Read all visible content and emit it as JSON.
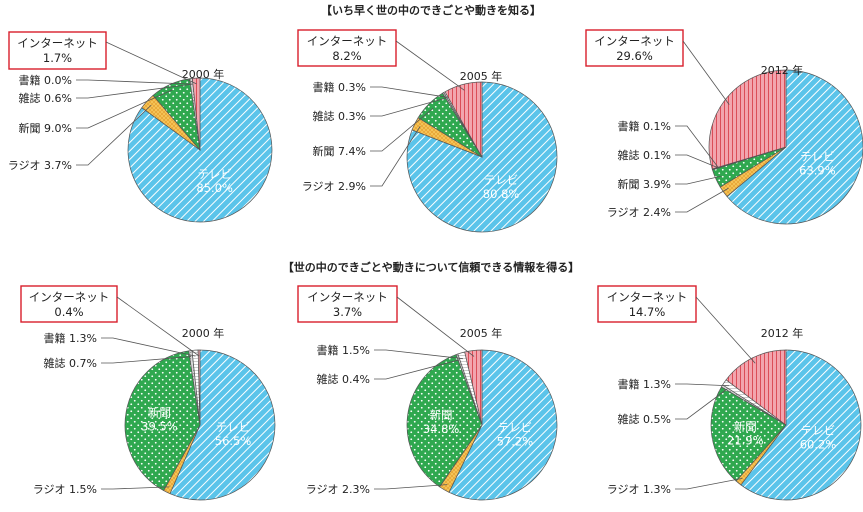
{
  "colors": {
    "tv": "#5bc4ea",
    "newspaper": "#2fa84f",
    "radio": "#f5c65a",
    "internet": "#f2a5ae",
    "magazine": "#d7d7d7",
    "book": "#ffffff",
    "label_box_border": "#d81e2c",
    "leader_line": "#555555"
  },
  "sections": [
    {
      "title": "【いち早く世の中のできごとや動きを知る】"
    },
    {
      "title": "【世の中のできごとや動きについて信頼できる情報を得る】"
    }
  ],
  "chart_data": [
    {
      "type": "pie",
      "section": 0,
      "year_label": "2000 年",
      "slices": [
        {
          "category": "テレビ",
          "value": 85.0,
          "label": "テレビ",
          "value_label": "85.0%"
        },
        {
          "category": "ラジオ",
          "value": 3.7,
          "label": "ラジオ",
          "value_label": "3.7%"
        },
        {
          "category": "新聞",
          "value": 9.0,
          "label": "新聞",
          "value_label": "9.0%"
        },
        {
          "category": "雑誌",
          "value": 0.6,
          "label": "雑誌",
          "value_label": "0.6%"
        },
        {
          "category": "書籍",
          "value": 0.0,
          "label": "書籍",
          "value_label": "0.0%"
        },
        {
          "category": "インターネット",
          "value": 1.7,
          "label": "インターネット",
          "value_label": "1.7%"
        }
      ]
    },
    {
      "type": "pie",
      "section": 0,
      "year_label": "2005 年",
      "slices": [
        {
          "category": "テレビ",
          "value": 80.8,
          "label": "テレビ",
          "value_label": "80.8%"
        },
        {
          "category": "ラジオ",
          "value": 2.9,
          "label": "ラジオ",
          "value_label": "2.9%"
        },
        {
          "category": "新聞",
          "value": 7.4,
          "label": "新聞",
          "value_label": "7.4%"
        },
        {
          "category": "雑誌",
          "value": 0.3,
          "label": "雑誌",
          "value_label": "0.3%"
        },
        {
          "category": "書籍",
          "value": 0.3,
          "label": "書籍",
          "value_label": "0.3%"
        },
        {
          "category": "インターネット",
          "value": 8.2,
          "label": "インターネット",
          "value_label": "8.2%"
        }
      ]
    },
    {
      "type": "pie",
      "section": 0,
      "year_label": "2012 年",
      "slices": [
        {
          "category": "テレビ",
          "value": 63.9,
          "label": "テレビ",
          "value_label": "63.9%"
        },
        {
          "category": "ラジオ",
          "value": 2.4,
          "label": "ラジオ",
          "value_label": "2.4%"
        },
        {
          "category": "新聞",
          "value": 3.9,
          "label": "新聞",
          "value_label": "3.9%"
        },
        {
          "category": "雑誌",
          "value": 0.1,
          "label": "雑誌",
          "value_label": "0.1%"
        },
        {
          "category": "書籍",
          "value": 0.1,
          "label": "書籍",
          "value_label": "0.1%"
        },
        {
          "category": "インターネット",
          "value": 29.6,
          "label": "インターネット",
          "value_label": "29.6%"
        }
      ]
    },
    {
      "type": "pie",
      "section": 1,
      "year_label": "2000 年",
      "slices": [
        {
          "category": "テレビ",
          "value": 56.5,
          "label": "テレビ",
          "value_label": "56.5%"
        },
        {
          "category": "ラジオ",
          "value": 1.5,
          "label": "ラジオ",
          "value_label": "1.5%"
        },
        {
          "category": "新聞",
          "value": 39.5,
          "label": "新聞",
          "value_label": "39.5%"
        },
        {
          "category": "雑誌",
          "value": 0.7,
          "label": "雑誌",
          "value_label": "0.7%"
        },
        {
          "category": "書籍",
          "value": 1.3,
          "label": "書籍",
          "value_label": "1.3%"
        },
        {
          "category": "インターネット",
          "value": 0.4,
          "label": "インターネット",
          "value_label": "0.4%"
        }
      ]
    },
    {
      "type": "pie",
      "section": 1,
      "year_label": "2005 年",
      "slices": [
        {
          "category": "テレビ",
          "value": 57.2,
          "label": "テレビ",
          "value_label": "57.2%"
        },
        {
          "category": "ラジオ",
          "value": 2.3,
          "label": "ラジオ",
          "value_label": "2.3%"
        },
        {
          "category": "新聞",
          "value": 34.8,
          "label": "新聞",
          "value_label": "34.8%"
        },
        {
          "category": "雑誌",
          "value": 0.4,
          "label": "雑誌",
          "value_label": "0.4%"
        },
        {
          "category": "書籍",
          "value": 1.5,
          "label": "書籍",
          "value_label": "1.5%"
        },
        {
          "category": "インターネット",
          "value": 3.7,
          "label": "インターネット",
          "value_label": "3.7%"
        }
      ]
    },
    {
      "type": "pie",
      "section": 1,
      "year_label": "2012 年",
      "slices": [
        {
          "category": "テレビ",
          "value": 60.2,
          "label": "テレビ",
          "value_label": "60.2%"
        },
        {
          "category": "ラジオ",
          "value": 1.3,
          "label": "ラジオ",
          "value_label": "1.3%"
        },
        {
          "category": "新聞",
          "value": 21.9,
          "label": "新聞",
          "value_label": "21.9%"
        },
        {
          "category": "雑誌",
          "value": 0.5,
          "label": "雑誌",
          "value_label": "0.5%"
        },
        {
          "category": "書籍",
          "value": 1.3,
          "label": "書籍",
          "value_label": "1.3%"
        },
        {
          "category": "インターネット",
          "value": 14.7,
          "label": "インターネット",
          "value_label": "14.7%"
        }
      ]
    }
  ]
}
